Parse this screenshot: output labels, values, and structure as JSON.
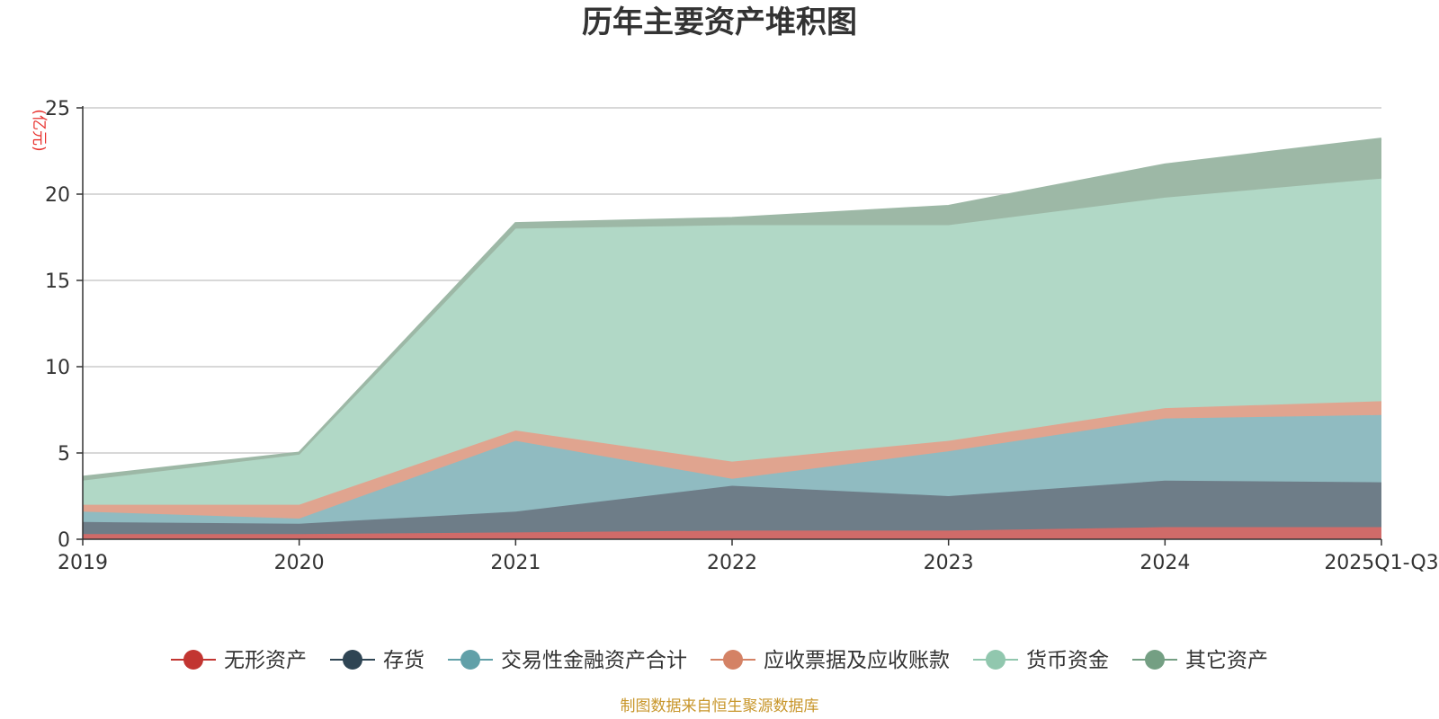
{
  "chart_data": {
    "type": "area",
    "stacked": true,
    "title": "历年主要资产堆积图",
    "unit_label": "(亿元)",
    "source": "制图数据来自恒生聚源数据库",
    "categories": [
      "2019",
      "2020",
      "2021",
      "2022",
      "2023",
      "2024",
      "2025Q1-Q3"
    ],
    "ylim": [
      0,
      25
    ],
    "yticks": [
      0,
      5,
      10,
      15,
      20,
      25
    ],
    "grid": true,
    "legend_position": "bottom",
    "series": [
      {
        "name": "无形资产",
        "color": "#c23531",
        "fill": "#d06b69",
        "values": [
          0.3,
          0.3,
          0.4,
          0.5,
          0.5,
          0.7,
          0.7
        ]
      },
      {
        "name": "存货",
        "color": "#2f4554",
        "fill": "#6e7d88",
        "values": [
          0.7,
          0.6,
          1.2,
          2.6,
          2.0,
          2.7,
          2.6
        ]
      },
      {
        "name": "交易性金融资产合计",
        "color": "#61a0a8",
        "fill": "#90bbc1",
        "values": [
          0.6,
          0.3,
          4.1,
          0.4,
          2.6,
          3.6,
          3.9
        ]
      },
      {
        "name": "应收票据及应收账款",
        "color": "#d48265",
        "fill": "#e0a48f",
        "values": [
          0.4,
          0.8,
          0.6,
          1.0,
          0.6,
          0.6,
          0.8
        ]
      },
      {
        "name": "货币资金",
        "color": "#91c7ae",
        "fill": "#b1d8c6",
        "values": [
          1.4,
          2.9,
          11.7,
          13.7,
          12.5,
          12.2,
          12.9
        ]
      },
      {
        "name": "其它资产",
        "color": "#749f83",
        "fill": "#9db8a6",
        "values": [
          0.2,
          0.1,
          0.3,
          0.4,
          1.1,
          1.9,
          2.3
        ]
      }
    ]
  }
}
